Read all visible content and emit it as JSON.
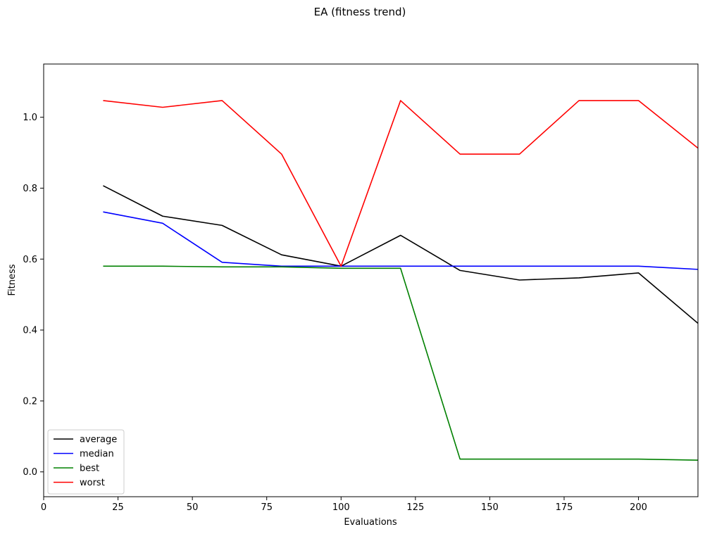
{
  "chart_data": {
    "type": "line",
    "title": "EA (fitness trend)",
    "xlabel": "Evaluations",
    "ylabel": "Fitness",
    "xlim": [
      0,
      220
    ],
    "ylim": [
      -0.07,
      1.15
    ],
    "xticks": [
      0,
      25,
      50,
      75,
      100,
      125,
      150,
      175,
      200
    ],
    "xtick_labels": [
      "0",
      "25",
      "50",
      "75",
      "100",
      "125",
      "150",
      "175",
      "200"
    ],
    "yticks": [
      0.0,
      0.2,
      0.4,
      0.6,
      0.8,
      1.0
    ],
    "ytick_labels": [
      "0.0",
      "0.2",
      "0.4",
      "0.6",
      "0.8",
      "1.0"
    ],
    "grid": false,
    "legend_position": "lower-left",
    "x": [
      20,
      40,
      60,
      80,
      100,
      120,
      140,
      160,
      180,
      200,
      220
    ],
    "series": [
      {
        "name": "average",
        "color": "#000000",
        "values": [
          0.807,
          0.721,
          0.695,
          0.612,
          0.58,
          0.667,
          0.568,
          0.541,
          0.547,
          0.561,
          0.419
        ]
      },
      {
        "name": "median",
        "color": "#0000ff",
        "values": [
          0.733,
          0.701,
          0.591,
          0.58,
          0.58,
          0.58,
          0.58,
          0.58,
          0.58,
          0.58,
          0.571
        ]
      },
      {
        "name": "best",
        "color": "#008000",
        "values": [
          0.58,
          0.58,
          0.578,
          0.578,
          0.574,
          0.574,
          0.036,
          0.036,
          0.036,
          0.036,
          0.033
        ]
      },
      {
        "name": "worst",
        "color": "#ff0000",
        "values": [
          1.047,
          1.028,
          1.047,
          0.896,
          0.58,
          1.047,
          0.896,
          0.896,
          1.047,
          1.047,
          0.913
        ]
      }
    ]
  }
}
